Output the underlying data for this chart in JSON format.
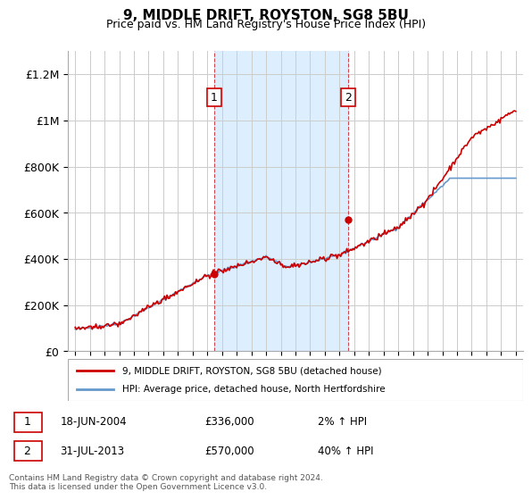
{
  "title": "9, MIDDLE DRIFT, ROYSTON, SG8 5BU",
  "subtitle": "Price paid vs. HM Land Registry's House Price Index (HPI)",
  "xlabel": "",
  "ylabel": "",
  "ylim": [
    0,
    1300000
  ],
  "yticks": [
    0,
    200000,
    400000,
    600000,
    800000,
    1000000,
    1200000
  ],
  "ytick_labels": [
    "£0",
    "£200K",
    "£400K",
    "£600K",
    "£800K",
    "£1M",
    "£1.2M"
  ],
  "sale1_year": 2004.46,
  "sale1_price": 336000,
  "sale1_label": "1",
  "sale1_date": "18-JUN-2004",
  "sale2_year": 2013.58,
  "sale2_price": 570000,
  "sale2_label": "2",
  "sale2_date": "31-JUL-2013",
  "line_color_red": "#cc0000",
  "line_color_blue": "#6699cc",
  "shade_color": "#ddeeff",
  "grid_color": "#cccccc",
  "footnote": "Contains HM Land Registry data © Crown copyright and database right 2024.\nThis data is licensed under the Open Government Licence v3.0.",
  "legend1": "9, MIDDLE DRIFT, ROYSTON, SG8 5BU (detached house)",
  "legend2": "HPI: Average price, detached house, North Hertfordshire",
  "box1_text": "1    18-JUN-2004          £336,000          2% ↑ HPI",
  "box2_text": "2    31-JUL-2013           £570,000         40% ↑ HPI"
}
